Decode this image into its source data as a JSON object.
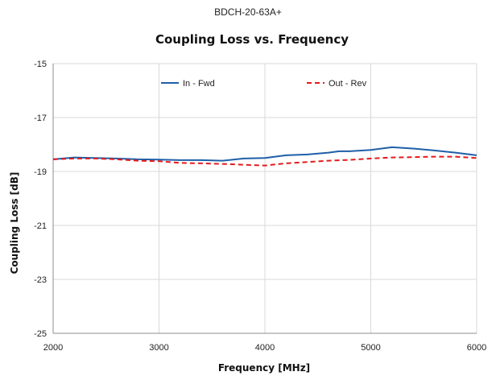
{
  "header": {
    "part_number": "BDCH-20-63A+"
  },
  "chart_data": {
    "type": "line",
    "title": "Coupling Loss vs. Frequency",
    "xlabel": "Frequency [MHz]",
    "ylabel": "Coupling Loss [dB]",
    "xlim": [
      2000,
      6000
    ],
    "ylim": [
      -25,
      -15
    ],
    "xticks": [
      2000,
      3000,
      4000,
      5000,
      6000
    ],
    "yticks": [
      -15,
      -17,
      -19,
      -21,
      -23,
      -25
    ],
    "grid": true,
    "legend_position": "top",
    "series": [
      {
        "name": "In - Fwd",
        "color": "#1f5fa8",
        "dash": "solid",
        "x": [
          2000,
          2200,
          2400,
          2600,
          2800,
          3000,
          3200,
          3400,
          3600,
          3800,
          4000,
          4200,
          4400,
          4600,
          4700,
          4800,
          5000,
          5200,
          5400,
          5600,
          5800,
          6000
        ],
        "y": [
          -18.55,
          -18.48,
          -18.5,
          -18.52,
          -18.55,
          -18.56,
          -18.58,
          -18.58,
          -18.6,
          -18.52,
          -18.5,
          -18.4,
          -18.37,
          -18.3,
          -18.25,
          -18.25,
          -18.2,
          -18.1,
          -18.15,
          -18.22,
          -18.3,
          -18.4
        ]
      },
      {
        "name": "Out - Rev",
        "color": "#e31a1c",
        "dash": "dashed",
        "x": [
          2000,
          2200,
          2400,
          2600,
          2800,
          3000,
          3200,
          3400,
          3600,
          3800,
          4000,
          4200,
          4400,
          4600,
          4800,
          5000,
          5200,
          5400,
          5600,
          5800,
          6000
        ],
        "y": [
          -18.55,
          -18.52,
          -18.52,
          -18.55,
          -18.6,
          -18.62,
          -18.68,
          -18.7,
          -18.72,
          -18.75,
          -18.78,
          -18.7,
          -18.65,
          -18.6,
          -18.57,
          -18.52,
          -18.48,
          -18.47,
          -18.45,
          -18.45,
          -18.5
        ]
      }
    ]
  }
}
